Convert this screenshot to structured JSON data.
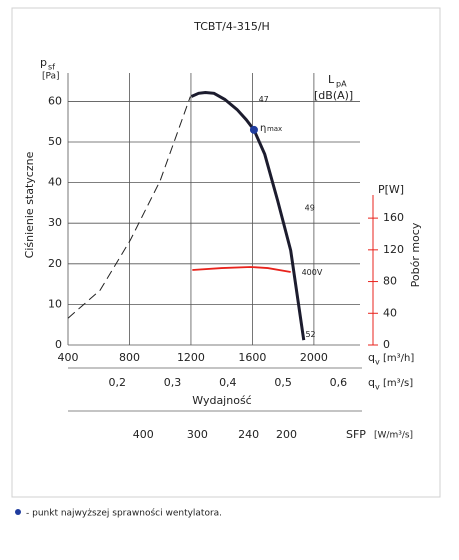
{
  "chart_data": {
    "type": "line",
    "title": "TCBT/4-315/H",
    "y_label": {
      "symbol": "p",
      "sub": "sf",
      "unit": "[Pa]"
    },
    "y_title": "Ciśnienie statyczne",
    "lpa_label": {
      "symbol": "L",
      "sub": "pA",
      "unit": "[dB(A)]",
      "color": "#3a9a3a"
    },
    "y2_label": "P[W]",
    "y2_title": "Pobór mocy",
    "y2_color": "#e8231c",
    "x_label": {
      "symbol": "q",
      "sub": "v",
      "unit": "[m³/h]"
    },
    "x2_label": {
      "symbol": "q",
      "sub": "v",
      "unit": "[m³/s]"
    },
    "x_title": "Wydajność",
    "sfp_label": {
      "symbol": "SFP",
      "unit": "[W/m³/s]"
    },
    "xlim": [
      400,
      2300
    ],
    "xticks": [
      400,
      800,
      1200,
      1600,
      2000
    ],
    "ylim": [
      0,
      67
    ],
    "yticks": [
      0,
      10,
      20,
      30,
      40,
      50,
      60
    ],
    "y2lim": [
      0,
      343
    ],
    "y2ticks": [
      0,
      40,
      80,
      120,
      160
    ],
    "x2lim": [
      0.111,
      0.639
    ],
    "x2ticks": [
      {
        "value": 0.2,
        "label": "0,2"
      },
      {
        "value": 0.3,
        "label": "0,3"
      },
      {
        "value": 0.4,
        "label": "0,4"
      },
      {
        "value": 0.5,
        "label": "0,5"
      },
      {
        "value": 0.6,
        "label": "0,6"
      }
    ],
    "sfp_ticks": [
      {
        "value": 400,
        "x": 890
      },
      {
        "value": 300,
        "x": 1242
      },
      {
        "value": 240,
        "x": 1575
      },
      {
        "value": 200,
        "x": 1822
      }
    ],
    "grid": true,
    "series": [
      {
        "color": "#222222",
        "dash": true,
        "axis": "y",
        "x": [
          400,
          609,
          805,
          1000,
          1196
        ],
        "values": [
          6.6,
          13.5,
          25.8,
          40.5,
          61.2
        ]
      },
      {
        "color": "#1c1c2e",
        "dash": false,
        "axis": "y",
        "x": [
          1203,
          1250,
          1294,
          1350,
          1420,
          1500,
          1560,
          1610,
          1680,
          1764,
          1849,
          1934
        ],
        "values": [
          61.2,
          62.0,
          62.2,
          62.0,
          60.5,
          58.0,
          55.5,
          53.0,
          47.0,
          35.6,
          23.3,
          1.2
        ]
      },
      {
        "color": "#e8231c",
        "dash": false,
        "axis": "y2",
        "x": [
          1209,
          1400,
          1588,
          1700,
          1849
        ],
        "values": [
          94.6,
          97.0,
          98.4,
          97.0,
          92.0
        ]
      }
    ],
    "points": [
      {
        "x": 1610,
        "y": 53,
        "color": "#1f3c9e",
        "label": "η",
        "sub": "max"
      }
    ],
    "annotations": [
      {
        "text": "47",
        "x": 1640,
        "y": 60.5,
        "color": "#3a9a3a"
      },
      {
        "text": "49",
        "x": 1940,
        "y": 33.8,
        "color": "#3a9a3a"
      },
      {
        "text": "52",
        "x": 1945,
        "y": 2.6,
        "color": "#3a9a3a"
      },
      {
        "text": "400V",
        "x": 1920,
        "y": 17.8,
        "color": "#e8231c"
      }
    ],
    "footnote": "- punkt najwyższej sprawności wentylatora."
  }
}
